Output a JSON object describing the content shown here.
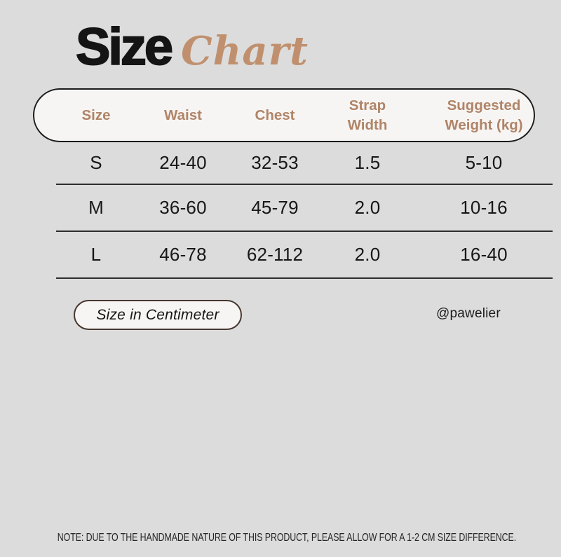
{
  "title": {
    "main": "Size",
    "accent": "Chart"
  },
  "chart_data": {
    "type": "table",
    "title": "Size Chart",
    "columns": [
      "Size",
      "Waist",
      "Chest",
      "Strap Width",
      "Suggested Weight (kg)"
    ],
    "rows": [
      [
        "S",
        "24-40",
        "32-53",
        "1.5",
        "5-10"
      ],
      [
        "M",
        "36-60",
        "45-79",
        "2.0",
        "10-16"
      ],
      [
        "L",
        "46-78",
        "62-112",
        "2.0",
        "16-40"
      ]
    ],
    "unit": "Centimeter"
  },
  "unit_button": {
    "label": "Size in Centimeter"
  },
  "credit": "@pawelier",
  "note": "NOTE: DUE TO THE HANDMADE NATURE OF THIS PRODUCT, PLEASE ALLOW FOR A 1-2 CM SIZE DIFFERENCE.",
  "colors": {
    "background": "#dcdcdc",
    "panel": "#f7f5f3",
    "header_text": "#b08468",
    "script_accent": "#c0906e",
    "text": "#171717",
    "line": "#2d2d2d",
    "button_border": "#473730"
  }
}
